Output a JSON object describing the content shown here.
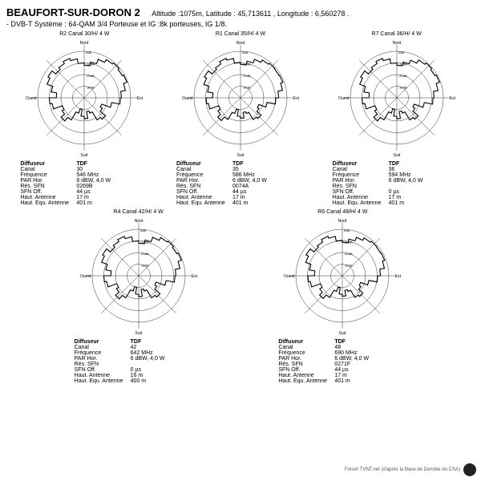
{
  "title": "BEAUFORT-SUR-DORON 2",
  "alt_label": "Altitude :",
  "altitude": "1075m,",
  "lat_label": "Latitude :",
  "latitude": "45,713611 ,",
  "lon_label": "Longitude :",
  "longitude": "6,560278 .",
  "subline": "- DVB-T   Système : 64-QAM 3/4   Porteuse et IG :8k porteuses, IG 1/8.",
  "axis_labels": {
    "n": "Nord",
    "e": "Est",
    "s": "Sud",
    "w": "Ouest"
  },
  "ring_labels": [
    "-30dB",
    "-20dB",
    "-10dB",
    "0dB"
  ],
  "polar_style": {
    "rings": 4,
    "ring_color": "#000000",
    "ring_width": 0.4,
    "spokes": 8,
    "spoke_color": "#000000",
    "spoke_width": 0.4,
    "trace_color": "#000000",
    "trace_width": 1.1,
    "background": "#ffffff",
    "label_fontsize": 5,
    "ring_label_fontsize": 4
  },
  "table_rows": [
    {
      "k": "Diffuseur",
      "key": "diffuseur",
      "header": true
    },
    {
      "k": "Canal",
      "key": "canal"
    },
    {
      "k": "Fréquence",
      "key": "freq"
    },
    {
      "k": "PAR Hor.",
      "key": "par"
    },
    {
      "k": "Rés. SFN",
      "key": "sfn"
    },
    {
      "k": "SFN Off.",
      "key": "sfnoff"
    },
    {
      "k": "Haut. Antenne",
      "key": "haut"
    },
    {
      "k": "Haut. Equ. Antenne",
      "key": "hautequ"
    }
  ],
  "charts": [
    {
      "id": "R2",
      "title": "R2  Canal 30/H/   4  W",
      "info": {
        "diffuseur": "TDF",
        "canal": "30",
        "freq": "546 MHz",
        "par": "6 dBW, 4,0 W",
        "sfn": "0269B",
        "sfnoff": "44 µs",
        "haut": "17 m",
        "hautequ": "401 m"
      },
      "pattern": [
        0.7,
        0.78,
        0.88,
        0.95,
        0.98,
        0.95,
        0.98,
        0.9,
        0.8,
        0.78,
        0.6,
        0.4,
        0.45,
        0.6,
        0.55,
        0.35,
        0.3,
        0.45,
        0.4,
        0.25,
        0.35,
        0.55,
        0.65,
        0.55,
        0.5,
        0.7,
        0.75,
        0.6,
        0.72,
        0.85,
        0.9,
        0.8,
        0.85,
        0.9,
        0.85,
        0.75
      ]
    },
    {
      "id": "R1",
      "title": "R1  Canal 35/H/   4  W",
      "info": {
        "diffuseur": "TDF",
        "canal": "35",
        "freq": "586 MHz",
        "par": "6 dBW, 4,0 W",
        "sfn": "0074A",
        "sfnoff": "44 µs",
        "haut": "17 m",
        "hautequ": "401 m"
      },
      "pattern": [
        0.72,
        0.8,
        0.88,
        0.94,
        0.97,
        0.96,
        0.97,
        0.92,
        0.82,
        0.76,
        0.58,
        0.42,
        0.46,
        0.58,
        0.54,
        0.36,
        0.32,
        0.44,
        0.4,
        0.26,
        0.36,
        0.54,
        0.64,
        0.56,
        0.5,
        0.7,
        0.74,
        0.6,
        0.72,
        0.84,
        0.9,
        0.8,
        0.84,
        0.9,
        0.86,
        0.76
      ]
    },
    {
      "id": "R7",
      "title": "R7  Canal 36/H/   4  W",
      "info": {
        "diffuseur": "TDF",
        "canal": "36",
        "freq": "594 MHz",
        "par": "6 dBW, 4,0 W",
        "sfn": "",
        "sfnoff": "0 µs",
        "haut": "17 m",
        "hautequ": "401 m"
      },
      "pattern": [
        0.7,
        0.78,
        0.86,
        0.94,
        0.98,
        0.95,
        0.98,
        0.9,
        0.8,
        0.78,
        0.6,
        0.4,
        0.45,
        0.6,
        0.55,
        0.35,
        0.3,
        0.45,
        0.4,
        0.25,
        0.35,
        0.55,
        0.65,
        0.55,
        0.5,
        0.7,
        0.75,
        0.6,
        0.72,
        0.85,
        0.9,
        0.8,
        0.85,
        0.9,
        0.85,
        0.75
      ]
    },
    {
      "id": "R4",
      "title": "R4  Canal 42/H/   4  W",
      "info": {
        "diffuseur": "TDF",
        "canal": "42",
        "freq": "642 MHz",
        "par": "6 dBW, 4,0 W",
        "sfn": "",
        "sfnoff": "0 µs",
        "haut": "16 m",
        "hautequ": "400 m"
      },
      "pattern": [
        0.7,
        0.78,
        0.88,
        0.95,
        0.98,
        0.95,
        0.98,
        0.9,
        0.8,
        0.78,
        0.6,
        0.4,
        0.45,
        0.6,
        0.55,
        0.35,
        0.3,
        0.45,
        0.4,
        0.25,
        0.35,
        0.55,
        0.65,
        0.55,
        0.5,
        0.7,
        0.75,
        0.6,
        0.72,
        0.85,
        0.9,
        0.8,
        0.85,
        0.9,
        0.85,
        0.75
      ]
    },
    {
      "id": "R6",
      "title": "R6  Canal 48/H/   4  W",
      "info": {
        "diffuseur": "TDF",
        "canal": "48",
        "freq": "690 MHz",
        "par": "6 dBW, 4,0 W",
        "sfn": "0271F",
        "sfnoff": "44 µs",
        "haut": "17 m",
        "hautequ": "401 m"
      },
      "pattern": [
        0.72,
        0.8,
        0.88,
        0.94,
        0.97,
        0.96,
        0.97,
        0.92,
        0.82,
        0.76,
        0.58,
        0.42,
        0.46,
        0.58,
        0.54,
        0.36,
        0.32,
        0.44,
        0.4,
        0.26,
        0.36,
        0.54,
        0.64,
        0.56,
        0.5,
        0.7,
        0.74,
        0.6,
        0.72,
        0.84,
        0.9,
        0.8,
        0.84,
        0.9,
        0.86,
        0.76
      ]
    }
  ],
  "footer_text": "Forum TVNT.net (d'après la Base de Donnée du CSA)"
}
